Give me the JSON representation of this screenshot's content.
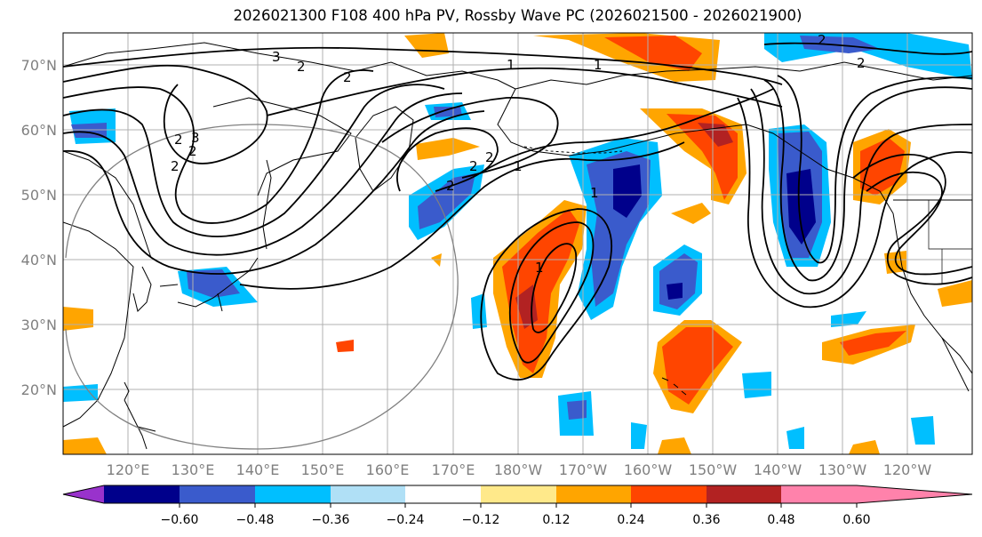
{
  "title": "2026021300 F108 400 hPa PV, Rossby Wave PC (2026021500 - 2026021900)",
  "lat_labels": [
    "70°N",
    "60°N",
    "50°N",
    "40°N",
    "30°N",
    "20°N"
  ],
  "lon_labels": [
    "120°E",
    "130°E",
    "140°E",
    "150°E",
    "160°E",
    "170°E",
    "180°W",
    "170°W",
    "160°W",
    "150°W",
    "140°W",
    "130°W",
    "120°W"
  ],
  "colorbar": {
    "tick_labels": [
      "−0.60",
      "−0.48",
      "−0.36",
      "−0.24",
      "−0.12",
      "0.12",
      "0.24",
      "0.36",
      "0.48",
      "0.60"
    ],
    "colors": [
      "#9932cc",
      "#00008b",
      "#3a5bcc",
      "#00bfff",
      "#b0e0f6",
      "#ffffff",
      "#ffe98a",
      "#ffa500",
      "#ff4500",
      "#b22222",
      "#ff82ab"
    ]
  },
  "contour_labels": [
    "3",
    "2",
    "2",
    "1",
    "1",
    "2",
    "2",
    "2",
    "3",
    "2",
    "2",
    "2",
    "1",
    "1",
    "1",
    "2",
    "2"
  ],
  "map": {
    "extent": {
      "lon_min": 110,
      "lon_max": 250,
      "lat_min": 10,
      "lat_max": 75
    },
    "colors": {
      "gridline": "#b0b0b0",
      "coast": "#000000",
      "contour": "#000000",
      "circle": "#808080"
    }
  }
}
